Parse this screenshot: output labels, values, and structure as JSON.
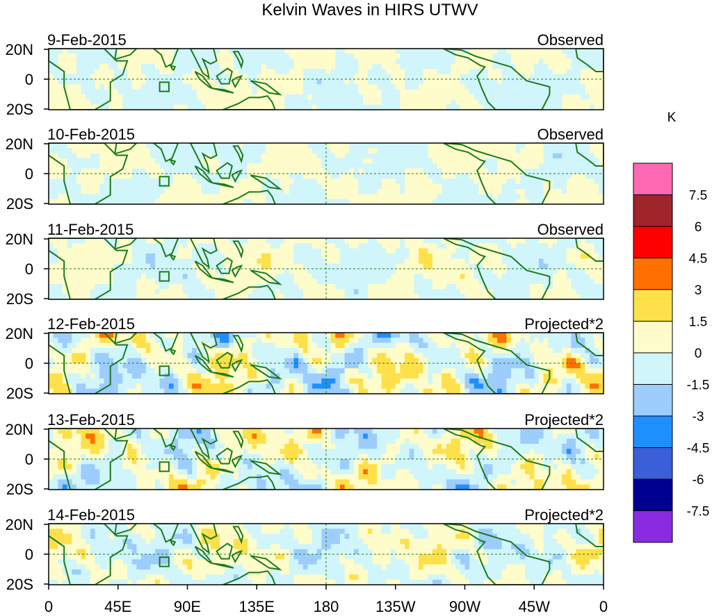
{
  "chart_data": {
    "type": "heatmap",
    "title": "Kelvin Waves in HIRS UTWV",
    "units": "K",
    "lat_labels": [
      "20N",
      "0",
      "20S"
    ],
    "lat_range": [
      -20,
      20
    ],
    "lon_range": [
      0,
      360
    ],
    "x_ticks": [
      {
        "lon": 0,
        "label": "0"
      },
      {
        "lon": 45,
        "label": "45E"
      },
      {
        "lon": 90,
        "label": "90E"
      },
      {
        "lon": 135,
        "label": "135E"
      },
      {
        "lon": 180,
        "label": "180"
      },
      {
        "lon": 225,
        "label": "135W"
      },
      {
        "lon": 270,
        "label": "90W"
      },
      {
        "lon": 315,
        "label": "45W"
      },
      {
        "lon": 360,
        "label": "0"
      }
    ],
    "colorbar": {
      "colors": [
        "#8a2be2",
        "#000090",
        "#3a5fd9",
        "#1e8fff",
        "#9dcdfd",
        "#d0f5fb",
        "#fefcca",
        "#fde04a",
        "#ff7000",
        "#ff0000",
        "#a0242a",
        "#ff69b4"
      ],
      "levels": [
        "-7.5",
        "-6",
        "-4.5",
        "-3",
        "-1.5",
        "0",
        "1.5",
        "3",
        "4.5",
        "6",
        "7.5"
      ]
    },
    "panels": [
      {
        "date": "9-Feb-2015",
        "label": "Observed",
        "amp": 0.7,
        "seed": 1,
        "mark180": false
      },
      {
        "date": "10-Feb-2015",
        "label": "Observed",
        "amp": 0.8,
        "seed": 2,
        "mark180": true
      },
      {
        "date": "11-Feb-2015",
        "label": "Observed",
        "amp": 1.0,
        "seed": 3,
        "mark180": true
      },
      {
        "date": "12-Feb-2015",
        "label": "Projected*2",
        "amp": 2.2,
        "seed": 4,
        "mark180": true
      },
      {
        "date": "13-Feb-2015",
        "label": "Projected*2",
        "amp": 1.8,
        "seed": 5,
        "mark180": true
      },
      {
        "date": "14-Feb-2015",
        "label": "Projected*2",
        "amp": 1.5,
        "seed": 6,
        "mark180": true
      }
    ]
  }
}
